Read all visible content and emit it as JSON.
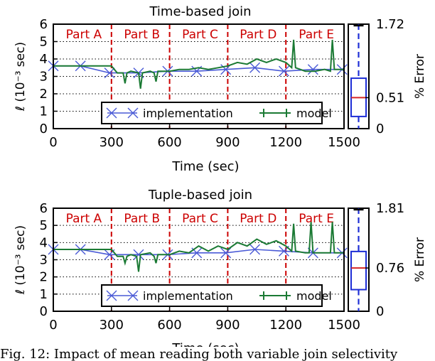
{
  "caption": "Fig. 12: Impact of mean reading both variable join selectivity",
  "series_colors": {
    "implementation": "#4a5ad6",
    "model": "#1b7a34",
    "parts": "#cc0000",
    "box": "#1f2fd6",
    "median": "#d62728"
  },
  "chart_data": [
    {
      "type": "line",
      "title": "Time-based join",
      "xlabel": "Time (sec)",
      "ylabel": "ℓ (10⁻³ sec)",
      "y2label": "% Error",
      "xlim": [
        0,
        1500
      ],
      "ylim": [
        0,
        6
      ],
      "xticks": [
        "0",
        "300",
        "600",
        "900",
        "1200",
        "1500"
      ],
      "yticks": [
        "0",
        "1",
        "2",
        "3",
        "4",
        "5",
        "6"
      ],
      "y2ticks": [
        "0",
        "0.51",
        "1.72"
      ],
      "grid": "horizontal dotted",
      "legend": "bottom-center",
      "parts": [
        {
          "label": "Part A",
          "start": 0,
          "end": 300
        },
        {
          "label": "Part B",
          "start": 300,
          "end": 600
        },
        {
          "label": "Part C",
          "start": 600,
          "end": 900
        },
        {
          "label": "Part D",
          "start": 900,
          "end": 1200
        },
        {
          "label": "Part E",
          "start": 1200,
          "end": 1500
        }
      ],
      "series": [
        {
          "name": "implementation",
          "marker": "x",
          "x": [
            0,
            140,
            290,
            440,
            590,
            740,
            890,
            1040,
            1190,
            1340,
            1490
          ],
          "values": [
            3.6,
            3.6,
            3.2,
            3.2,
            3.3,
            3.3,
            3.4,
            3.5,
            3.3,
            3.4,
            3.4
          ]
        },
        {
          "name": "model",
          "marker": "+",
          "x": [
            0,
            300,
            330,
            360,
            370,
            380,
            400,
            440,
            450,
            460,
            500,
            520,
            530,
            540,
            600,
            650,
            700,
            750,
            800,
            850,
            900,
            950,
            1000,
            1050,
            1100,
            1150,
            1200,
            1230,
            1240,
            1250,
            1300,
            1350,
            1400,
            1430,
            1440,
            1450,
            1500
          ],
          "values": [
            3.6,
            3.6,
            3.2,
            3.2,
            2.6,
            3.2,
            3.3,
            3.2,
            2.3,
            3.2,
            3.3,
            3.2,
            2.7,
            3.3,
            3.3,
            3.4,
            3.4,
            3.5,
            3.4,
            3.5,
            3.6,
            3.8,
            3.7,
            4.0,
            3.8,
            4.0,
            3.8,
            3.5,
            5.1,
            3.5,
            3.3,
            3.3,
            3.4,
            3.3,
            5.1,
            3.4,
            3.4
          ]
        }
      ],
      "error_box": {
        "whisker_low": 0,
        "q1": 0.2,
        "median": 0.51,
        "q3": 0.83,
        "whisker_high": 1.72,
        "axis_max": 1.72
      }
    },
    {
      "type": "line",
      "title": "Tuple-based join",
      "xlabel": "Time (sec)",
      "ylabel": "ℓ (10⁻³ sec)",
      "y2label": "% Error",
      "xlim": [
        0,
        1500
      ],
      "ylim": [
        0,
        6
      ],
      "xticks": [
        "0",
        "300",
        "600",
        "900",
        "1200",
        "1500"
      ],
      "yticks": [
        "0",
        "1",
        "2",
        "3",
        "4",
        "5",
        "6"
      ],
      "y2ticks": [
        "0",
        "0.76",
        "1.81"
      ],
      "grid": "horizontal dotted",
      "legend": "bottom-center",
      "parts": [
        {
          "label": "Part A",
          "start": 0,
          "end": 300
        },
        {
          "label": "Part B",
          "start": 300,
          "end": 600
        },
        {
          "label": "Part C",
          "start": 600,
          "end": 900
        },
        {
          "label": "Part D",
          "start": 900,
          "end": 1200
        },
        {
          "label": "Part E",
          "start": 1200,
          "end": 1500
        }
      ],
      "series": [
        {
          "name": "implementation",
          "marker": "x",
          "x": [
            0,
            140,
            290,
            440,
            590,
            740,
            890,
            1040,
            1190,
            1340,
            1490
          ],
          "values": [
            3.6,
            3.6,
            3.3,
            3.3,
            3.3,
            3.4,
            3.4,
            3.6,
            3.5,
            3.4,
            3.4
          ]
        },
        {
          "name": "model",
          "marker": "+",
          "x": [
            0,
            300,
            330,
            360,
            370,
            380,
            400,
            430,
            440,
            450,
            500,
            520,
            530,
            540,
            600,
            650,
            700,
            750,
            800,
            850,
            900,
            950,
            1000,
            1050,
            1100,
            1150,
            1200,
            1230,
            1240,
            1250,
            1300,
            1320,
            1330,
            1340,
            1400,
            1430,
            1440,
            1450,
            1500
          ],
          "values": [
            3.6,
            3.6,
            3.2,
            3.2,
            2.8,
            3.2,
            3.3,
            3.2,
            2.3,
            3.3,
            3.4,
            3.2,
            2.8,
            3.3,
            3.3,
            3.5,
            3.4,
            3.8,
            3.5,
            3.8,
            3.6,
            4.0,
            3.8,
            4.2,
            3.9,
            4.1,
            3.8,
            3.5,
            5.1,
            3.5,
            3.4,
            3.4,
            5.2,
            3.4,
            3.4,
            3.4,
            5.2,
            3.4,
            3.4
          ]
        }
      ],
      "error_box": {
        "whisker_low": 0,
        "q1": 0.38,
        "median": 0.76,
        "q3": 1.05,
        "whisker_high": 1.81,
        "axis_max": 1.81
      }
    }
  ]
}
